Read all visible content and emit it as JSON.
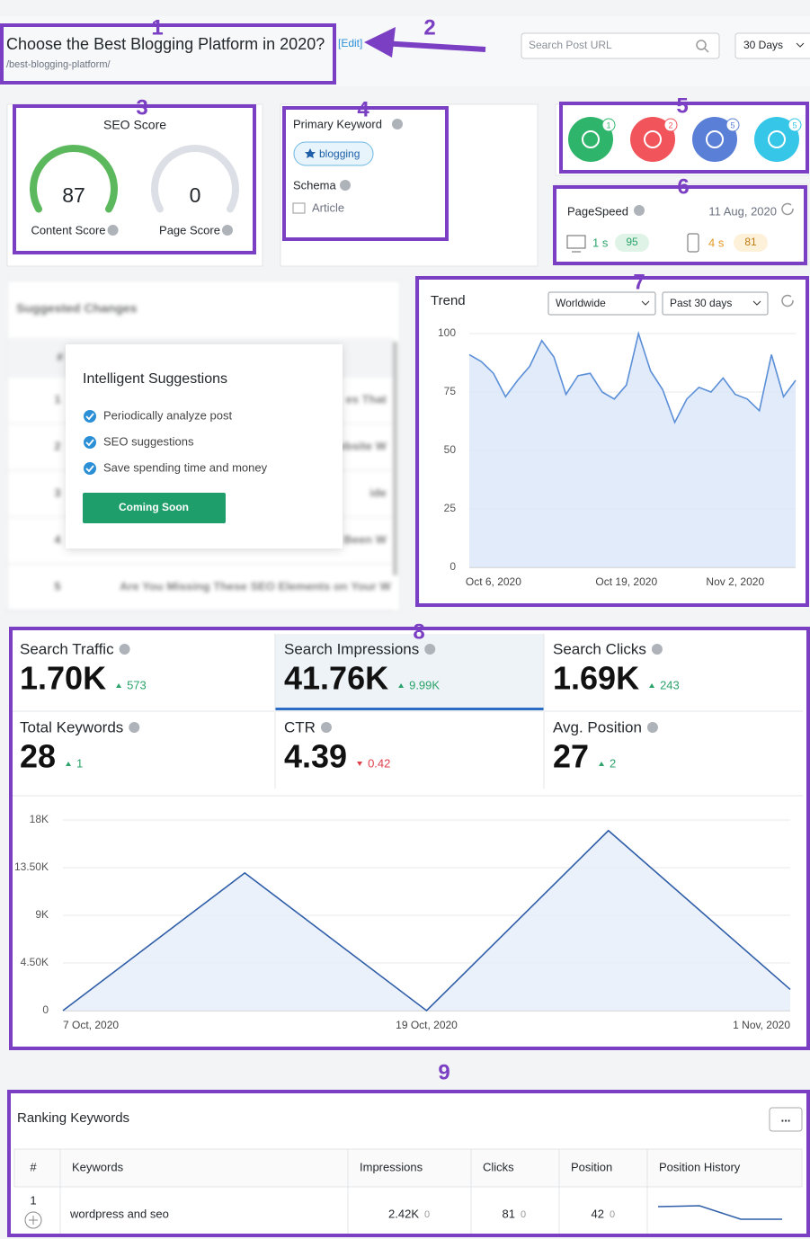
{
  "annotations": [
    "1",
    "2",
    "3",
    "4",
    "5",
    "6",
    "7",
    "8",
    "9"
  ],
  "header": {
    "title": "Choose the Best Blogging Platform in 2020?",
    "edit": "[Edit]",
    "url": "/best-blogging-platform/",
    "search_placeholder": "Search Post URL",
    "range": "30 Days"
  },
  "seo_score": {
    "title": "SEO Score",
    "gauges": [
      {
        "label": "Content Score",
        "value": "87",
        "color": "#5cb85c"
      },
      {
        "label": "Page Score",
        "value": "0",
        "color": "#dcdfe5"
      }
    ]
  },
  "keyword": {
    "label": "Primary Keyword",
    "keyword": "blogging",
    "schema_label": "Schema",
    "schema": "Article"
  },
  "badges": [
    {
      "count": "1",
      "color": "#2fb56b"
    },
    {
      "count": "2",
      "color": "#f2545b"
    },
    {
      "count": "5",
      "color": "#5a7fd6"
    },
    {
      "count": "5",
      "color": "#35c6e8"
    }
  ],
  "pagespeed": {
    "label": "PageSpeed",
    "date": "11 Aug, 2020",
    "desktop_time": "1 s",
    "desktop_score": "95",
    "mobile_time": "4 s",
    "mobile_score": "81"
  },
  "suggestions": {
    "title": "Suggested Changes",
    "header": "#",
    "rows": [
      {
        "num": "1",
        "text": "es That"
      },
      {
        "num": "2",
        "text": "ebsite W"
      },
      {
        "num": "3",
        "text": "ide"
      },
      {
        "num": "4",
        "text": "Been W"
      },
      {
        "num": "5",
        "text": "Are You Missing These SEO Elements on Your W"
      }
    ],
    "popup": {
      "title": "Intelligent Suggestions",
      "items": [
        "Periodically analyze post",
        "SEO suggestions",
        "Save spending time and money"
      ],
      "button": "Coming Soon"
    }
  },
  "stats": [
    {
      "name": "Search Traffic",
      "value": "1.70K",
      "change": "573",
      "direction": "up"
    },
    {
      "name": "Search Impressions",
      "value": "41.76K",
      "change": "9.99K",
      "direction": "up",
      "selected": true
    },
    {
      "name": "Search Clicks",
      "value": "1.69K",
      "change": "243",
      "direction": "up"
    },
    {
      "name": "Total Keywords",
      "value": "28",
      "change": "1",
      "direction": "up"
    },
    {
      "name": "CTR",
      "value": "4.39",
      "change": "0.42",
      "direction": "down"
    },
    {
      "name": "Avg. Position",
      "value": "27",
      "change": "2",
      "direction": "up"
    }
  ],
  "ranking": {
    "title": "Ranking Keywords",
    "menu": "...",
    "headers": [
      "#",
      "Keywords",
      "Impressions",
      "Clicks",
      "Position",
      "Position History"
    ],
    "rows": [
      {
        "num": "1",
        "keyword": "wordpress and seo",
        "impressions": "2.42K",
        "impressions_change": "0",
        "clicks": "81",
        "clicks_change": "0",
        "position": "42",
        "position_change": "0"
      }
    ]
  },
  "chart_data": [
    {
      "type": "area",
      "title": "Trend",
      "filters": [
        "Worldwide",
        "Past 30 days"
      ],
      "color": "#5b8fd8",
      "fill": "#dbe6f8",
      "categories": [
        null,
        null,
        "Oct 6, 2020",
        null,
        null,
        null,
        null,
        null,
        null,
        null,
        null,
        null,
        null,
        "Oct 19, 2020",
        null,
        null,
        null,
        null,
        null,
        null,
        null,
        null,
        "Nov 2, 2020",
        null,
        null,
        null,
        null,
        null
      ],
      "values": [
        91,
        88,
        83,
        73,
        80,
        86,
        97,
        90,
        74,
        82,
        83,
        75,
        72,
        78,
        100,
        84,
        76,
        62,
        72,
        77,
        75,
        81,
        74,
        72,
        67,
        91,
        73,
        80
      ],
      "ylim": [
        0,
        100
      ],
      "yticks": [
        0,
        25,
        50,
        75,
        100
      ],
      "grid": true
    },
    {
      "type": "area",
      "color": "#2f5ea8",
      "fill": "#e6edf9",
      "categories": [
        "7 Oct, 2020",
        null,
        "19 Oct, 2020",
        null,
        "1 Nov, 2020"
      ],
      "values": [
        0,
        13000,
        0,
        17000,
        2000
      ],
      "ylim": [
        0,
        18000
      ],
      "yticks": [
        0,
        {
          "value": 4500,
          "label": "4.50K"
        },
        {
          "value": 9000,
          "label": "9K"
        },
        {
          "value": 13500,
          "label": "13.50K"
        },
        {
          "value": 18000,
          "label": "18K"
        }
      ],
      "grid": true
    }
  ]
}
